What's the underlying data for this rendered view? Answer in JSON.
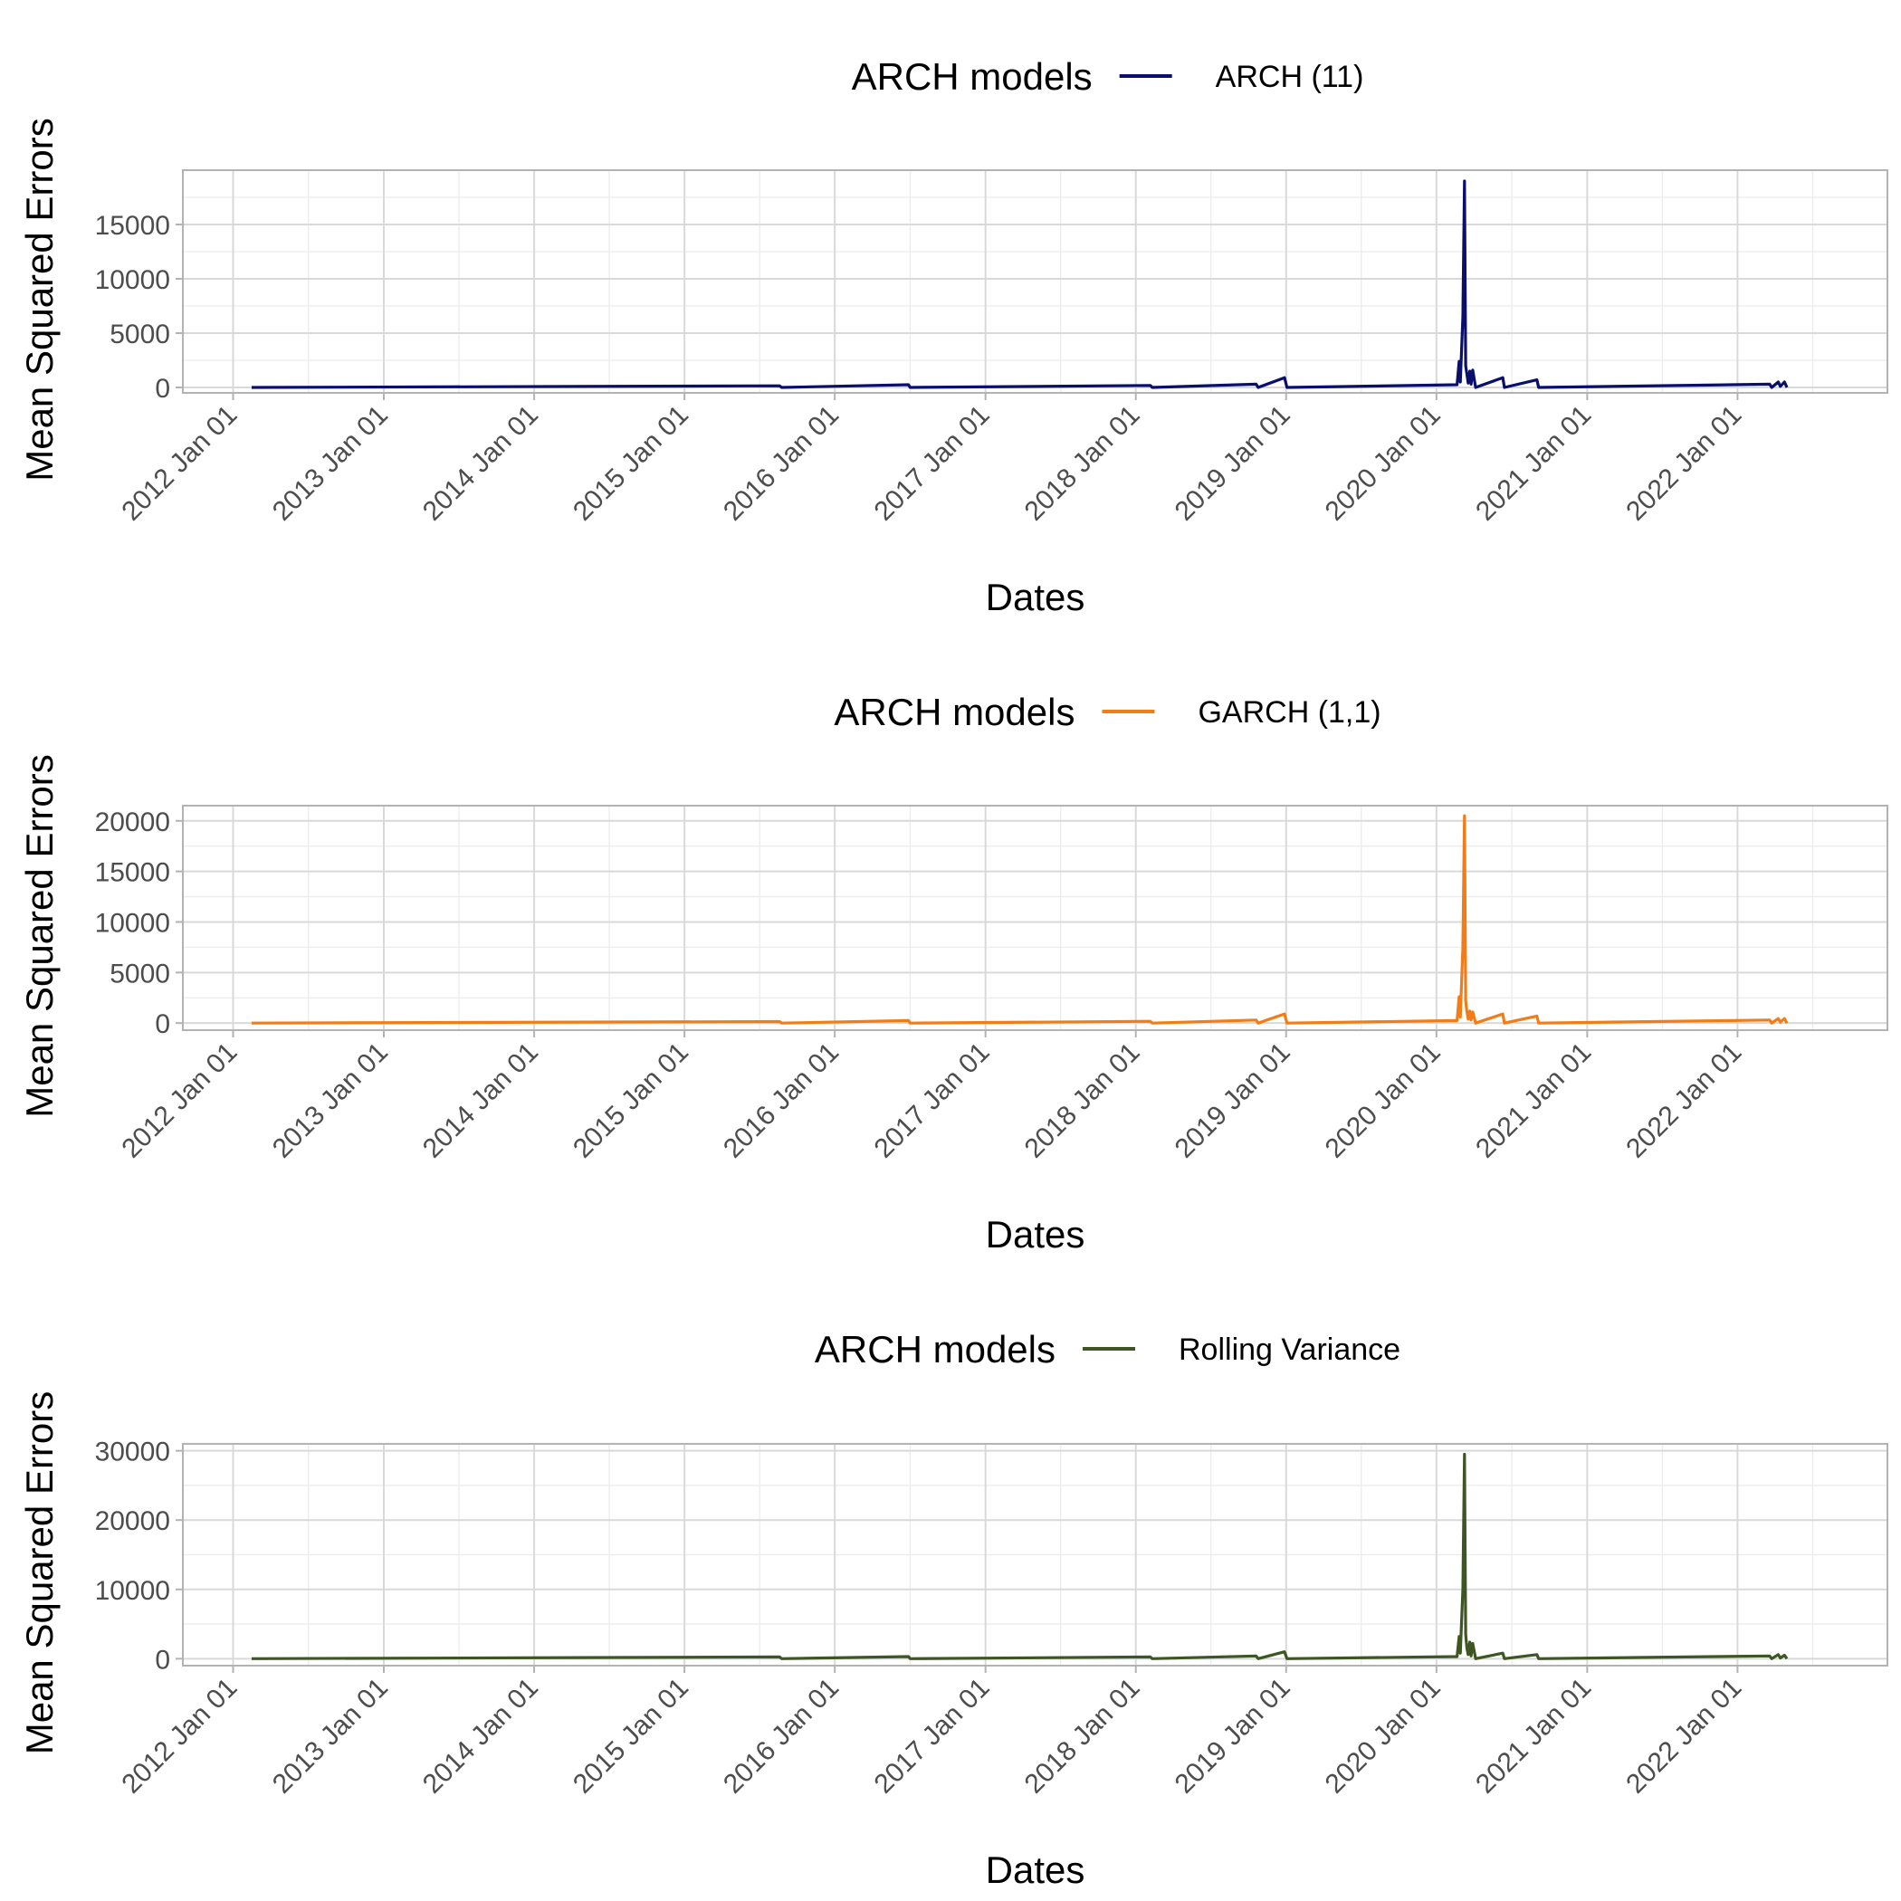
{
  "chart_data": [
    {
      "type": "line",
      "legend_title": "ARCH models",
      "legend_position": "top",
      "series": [
        {
          "name": "ARCH (11)",
          "color": "#0a0f6b"
        }
      ],
      "xlabel": "Dates",
      "ylabel": "Mean Squared Errors",
      "x_ticks": [
        "2012 Jan 01",
        "2013 Jan 01",
        "2014 Jan 01",
        "2015 Jan 01",
        "2016 Jan 01",
        "2017 Jan 01",
        "2018 Jan 01",
        "2019 Jan 01",
        "2020 Jan 01",
        "2021 Jan 01",
        "2022 Jan 01"
      ],
      "y_ticks": [
        0,
        5000,
        10000,
        15000
      ],
      "ylim": [
        -500,
        20000
      ],
      "xlim": [
        "2011-09-01",
        "2022-12-31"
      ],
      "grid": true,
      "points": [
        [
          "2012-02-15",
          0
        ],
        [
          "2015-08-20",
          150
        ],
        [
          "2015-08-25",
          0
        ],
        [
          "2016-06-28",
          250
        ],
        [
          "2016-07-02",
          0
        ],
        [
          "2018-02-05",
          180
        ],
        [
          "2018-02-10",
          0
        ],
        [
          "2018-10-20",
          300
        ],
        [
          "2018-10-25",
          0
        ],
        [
          "2018-12-28",
          900
        ],
        [
          "2019-01-03",
          0
        ],
        [
          "2020-02-20",
          250
        ],
        [
          "2020-02-25",
          2400
        ],
        [
          "2020-02-28",
          500
        ],
        [
          "2020-03-05",
          6500
        ],
        [
          "2020-03-09",
          19000
        ],
        [
          "2020-03-12",
          2000
        ],
        [
          "2020-03-15",
          1200
        ],
        [
          "2020-03-18",
          400
        ],
        [
          "2020-03-22",
          1500
        ],
        [
          "2020-03-25",
          300
        ],
        [
          "2020-03-29",
          1600
        ],
        [
          "2020-04-05",
          0
        ],
        [
          "2020-06-10",
          900
        ],
        [
          "2020-06-14",
          0
        ],
        [
          "2020-09-01",
          700
        ],
        [
          "2020-09-05",
          0
        ],
        [
          "2022-03-20",
          300
        ],
        [
          "2022-03-25",
          0
        ],
        [
          "2022-04-10",
          500
        ],
        [
          "2022-04-15",
          100
        ],
        [
          "2022-04-25",
          500
        ],
        [
          "2022-05-01",
          0
        ]
      ]
    },
    {
      "type": "line",
      "legend_title": "ARCH models",
      "legend_position": "top",
      "series": [
        {
          "name": "GARCH (1,1)",
          "color": "#f07d18"
        }
      ],
      "xlabel": "Dates",
      "ylabel": "Mean Squared Errors",
      "x_ticks": [
        "2012 Jan 01",
        "2013 Jan 01",
        "2014 Jan 01",
        "2015 Jan 01",
        "2016 Jan 01",
        "2017 Jan 01",
        "2018 Jan 01",
        "2019 Jan 01",
        "2020 Jan 01",
        "2021 Jan 01",
        "2022 Jan 01"
      ],
      "y_ticks": [
        0,
        5000,
        10000,
        15000,
        20000
      ],
      "ylim": [
        -700,
        21500
      ],
      "xlim": [
        "2011-09-01",
        "2022-12-31"
      ],
      "grid": true,
      "points": [
        [
          "2012-02-15",
          0
        ],
        [
          "2015-08-20",
          150
        ],
        [
          "2015-08-25",
          0
        ],
        [
          "2016-06-28",
          250
        ],
        [
          "2016-07-02",
          0
        ],
        [
          "2018-02-05",
          180
        ],
        [
          "2018-02-10",
          0
        ],
        [
          "2018-10-20",
          300
        ],
        [
          "2018-10-25",
          0
        ],
        [
          "2018-12-28",
          900
        ],
        [
          "2019-01-03",
          0
        ],
        [
          "2020-02-20",
          250
        ],
        [
          "2020-02-25",
          2600
        ],
        [
          "2020-02-28",
          600
        ],
        [
          "2020-03-05",
          7500
        ],
        [
          "2020-03-09",
          20500
        ],
        [
          "2020-03-12",
          2200
        ],
        [
          "2020-03-15",
          1100
        ],
        [
          "2020-03-18",
          400
        ],
        [
          "2020-03-22",
          1200
        ],
        [
          "2020-03-25",
          300
        ],
        [
          "2020-03-29",
          1100
        ],
        [
          "2020-04-05",
          0
        ],
        [
          "2020-06-10",
          900
        ],
        [
          "2020-06-14",
          0
        ],
        [
          "2020-09-01",
          700
        ],
        [
          "2020-09-05",
          0
        ],
        [
          "2022-03-20",
          300
        ],
        [
          "2022-03-25",
          0
        ],
        [
          "2022-04-10",
          450
        ],
        [
          "2022-04-15",
          100
        ],
        [
          "2022-04-25",
          450
        ],
        [
          "2022-05-01",
          0
        ]
      ]
    },
    {
      "type": "line",
      "legend_title": "ARCH models",
      "legend_position": "top",
      "series": [
        {
          "name": "Rolling Variance",
          "color": "#3e5623"
        }
      ],
      "xlabel": "Dates",
      "ylabel": "Mean Squared Errors",
      "x_ticks": [
        "2012 Jan 01",
        "2013 Jan 01",
        "2014 Jan 01",
        "2015 Jan 01",
        "2016 Jan 01",
        "2017 Jan 01",
        "2018 Jan 01",
        "2019 Jan 01",
        "2020 Jan 01",
        "2021 Jan 01",
        "2022 Jan 01"
      ],
      "y_ticks": [
        0,
        10000,
        20000,
        30000
      ],
      "ylim": [
        -1000,
        31000
      ],
      "xlim": [
        "2011-09-01",
        "2022-12-31"
      ],
      "grid": true,
      "points": [
        [
          "2012-02-15",
          0
        ],
        [
          "2015-08-20",
          250
        ],
        [
          "2015-08-25",
          0
        ],
        [
          "2016-06-28",
          300
        ],
        [
          "2016-07-02",
          0
        ],
        [
          "2018-02-05",
          250
        ],
        [
          "2018-02-10",
          0
        ],
        [
          "2018-10-20",
          400
        ],
        [
          "2018-10-25",
          0
        ],
        [
          "2018-12-28",
          1000
        ],
        [
          "2019-01-03",
          0
        ],
        [
          "2020-02-20",
          300
        ],
        [
          "2020-02-25",
          3200
        ],
        [
          "2020-02-28",
          800
        ],
        [
          "2020-03-05",
          10000
        ],
        [
          "2020-03-09",
          29500
        ],
        [
          "2020-03-12",
          3500
        ],
        [
          "2020-03-15",
          1500
        ],
        [
          "2020-03-18",
          600
        ],
        [
          "2020-03-22",
          2400
        ],
        [
          "2020-03-25",
          400
        ],
        [
          "2020-03-29",
          2200
        ],
        [
          "2020-04-05",
          0
        ],
        [
          "2020-06-10",
          800
        ],
        [
          "2020-06-14",
          0
        ],
        [
          "2020-09-01",
          600
        ],
        [
          "2020-09-05",
          0
        ],
        [
          "2022-03-20",
          400
        ],
        [
          "2022-03-25",
          0
        ],
        [
          "2022-04-10",
          600
        ],
        [
          "2022-04-15",
          100
        ],
        [
          "2022-04-25",
          500
        ],
        [
          "2022-05-01",
          0
        ]
      ]
    }
  ]
}
